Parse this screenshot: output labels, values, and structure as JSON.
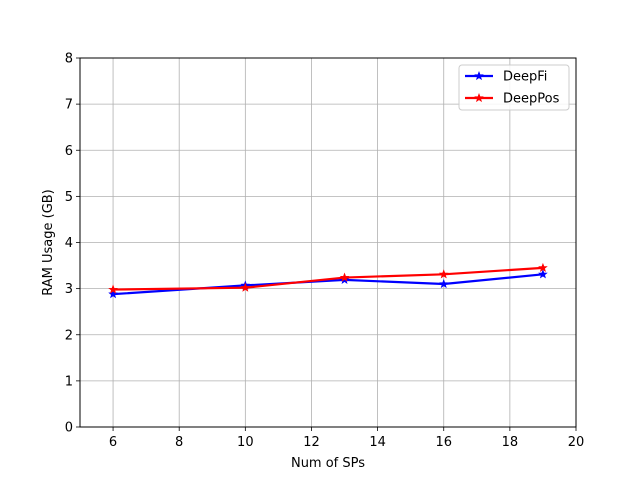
{
  "chart_data": {
    "type": "line",
    "xlabel": "Num of SPs",
    "ylabel": "RAM Usage (GB)",
    "xlim": [
      5,
      20
    ],
    "ylim": [
      0,
      8
    ],
    "xticks": [
      "6",
      "8",
      "10",
      "12",
      "14",
      "16",
      "18",
      "20"
    ],
    "yticks": [
      "0",
      "1",
      "2",
      "3",
      "4",
      "5",
      "6",
      "7",
      "8"
    ],
    "grid": true,
    "legend_position": "top-right",
    "marker": "star",
    "series": [
      {
        "name": "DeepFi",
        "color": "#0000ff",
        "x": [
          6,
          10,
          13,
          16,
          19
        ],
        "y": [
          2.88,
          3.07,
          3.19,
          3.1,
          3.31
        ]
      },
      {
        "name": "DeepPos",
        "color": "#ff0000",
        "x": [
          6,
          10,
          13,
          16,
          19
        ],
        "y": [
          2.98,
          3.02,
          3.24,
          3.31,
          3.45
        ]
      }
    ]
  }
}
